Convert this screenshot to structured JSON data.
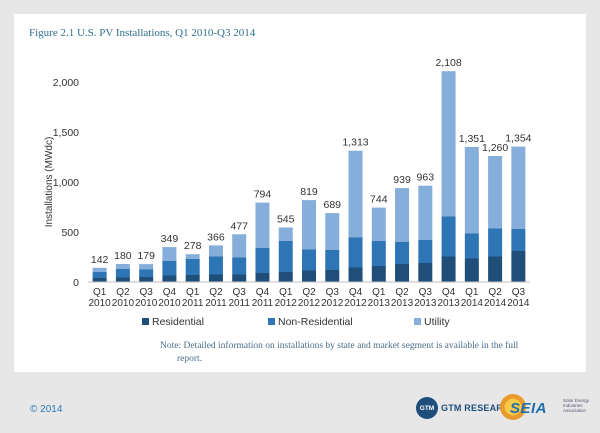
{
  "figure": {
    "title": "Figure 2.1  U.S. PV Installations, Q1 2010-Q3 2014"
  },
  "note": {
    "line1": "Note: Detailed information on installations by state and market segment is available in the full",
    "line2": "report."
  },
  "footer": {
    "copyright": "© 2014",
    "gtm_label": "GTM RESEARCH",
    "gtm_badge": "GTM",
    "seia_label": "SEIA",
    "seia_small": "Solar Energy Industries Association"
  },
  "colors": {
    "residential": "#1f4e79",
    "non_residential": "#2e75b6",
    "utility": "#86aedb"
  },
  "chart_data": {
    "type": "bar",
    "stacked": true,
    "title": "",
    "xlabel": "",
    "ylabel": "Installations (MWdc)",
    "ylim": [
      0,
      2250
    ],
    "yticks": [
      0,
      500,
      1000,
      1500,
      2000
    ],
    "ytick_labels": [
      "0",
      "500",
      "1,000",
      "1,500",
      "2,000"
    ],
    "categories": [
      [
        "Q1",
        "2010"
      ],
      [
        "Q2",
        "2010"
      ],
      [
        "Q3",
        "2010"
      ],
      [
        "Q4",
        "2010"
      ],
      [
        "Q1",
        "2011"
      ],
      [
        "Q2",
        "2011"
      ],
      [
        "Q3",
        "2011"
      ],
      [
        "Q4",
        "2011"
      ],
      [
        "Q1",
        "2012"
      ],
      [
        "Q2",
        "2012"
      ],
      [
        "Q3",
        "2012"
      ],
      [
        "Q4",
        "2012"
      ],
      [
        "Q1",
        "2013"
      ],
      [
        "Q2",
        "2013"
      ],
      [
        "Q3",
        "2013"
      ],
      [
        "Q4",
        "2013"
      ],
      [
        "Q1",
        "2014"
      ],
      [
        "Q2",
        "2014"
      ],
      [
        "Q3",
        "2014"
      ]
    ],
    "series": [
      {
        "name": "Residential",
        "values": [
          40,
          45,
          50,
          65,
          70,
          75,
          75,
          90,
          100,
          115,
          120,
          145,
          160,
          180,
          190,
          255,
          235,
          255,
          310
        ]
      },
      {
        "name": "Non-Residential",
        "values": [
          60,
          85,
          75,
          145,
          160,
          180,
          170,
          250,
          310,
          210,
          200,
          300,
          250,
          220,
          230,
          400,
          250,
          280,
          220
        ]
      },
      {
        "name": "Utility",
        "values": [
          42,
          50,
          54,
          139,
          48,
          111,
          232,
          454,
          135,
          494,
          369,
          868,
          334,
          539,
          543,
          1453,
          866,
          725,
          824
        ]
      }
    ],
    "totals": [
      142,
      180,
      179,
      349,
      278,
      366,
      477,
      794,
      545,
      819,
      689,
      1313,
      744,
      939,
      963,
      2108,
      1351,
      1260,
      1354
    ],
    "total_labels": [
      "142",
      "180",
      "179",
      "349",
      "278",
      "366",
      "477",
      "794",
      "545",
      "819",
      "689",
      "1,313",
      "744",
      "939",
      "963",
      "2,108",
      "1,351",
      "1,260",
      "1,354"
    ],
    "legend_position": "bottom",
    "grid": false
  }
}
